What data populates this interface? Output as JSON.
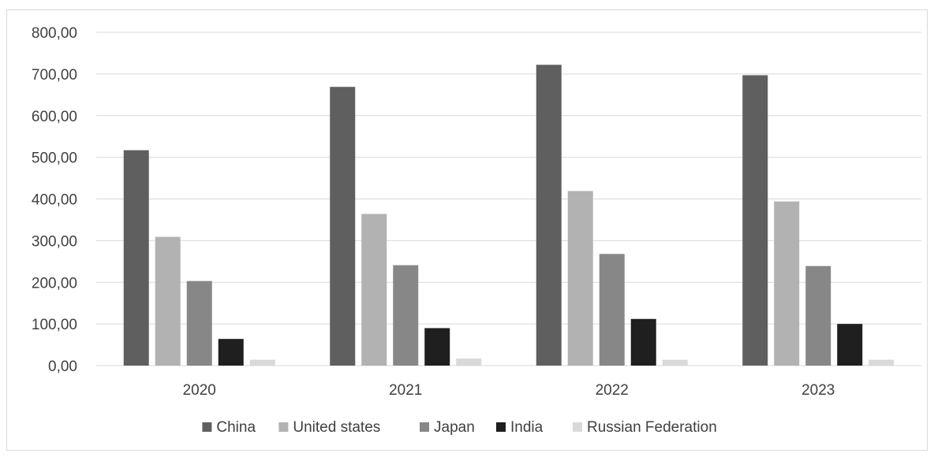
{
  "chart_data": {
    "type": "bar",
    "title": "",
    "xlabel": "",
    "ylabel": "",
    "categories": [
      "2020",
      "2021",
      "2022",
      "2023"
    ],
    "ylim": [
      0,
      800
    ],
    "yticks": [
      "0,00",
      "100,00",
      "200,00",
      "300,00",
      "400,00",
      "500,00",
      "600,00",
      "700,00",
      "800,00"
    ],
    "grid": true,
    "legend_position": "bottom",
    "series": [
      {
        "name": "China",
        "color": "#5f5f5f",
        "values": [
          517,
          669,
          722,
          697
        ]
      },
      {
        "name": "United states",
        "color": "#b2b2b2",
        "values": [
          309,
          364,
          419,
          394
        ]
      },
      {
        "name": "Japan",
        "color": "#878787",
        "values": [
          203,
          241,
          268,
          239
        ]
      },
      {
        "name": "India",
        "color": "#1f1f1f",
        "values": [
          64,
          90,
          112,
          100
        ]
      },
      {
        "name": "Russian Federation",
        "color": "#d9d9d9",
        "values": [
          14,
          17,
          14,
          14
        ]
      }
    ]
  }
}
